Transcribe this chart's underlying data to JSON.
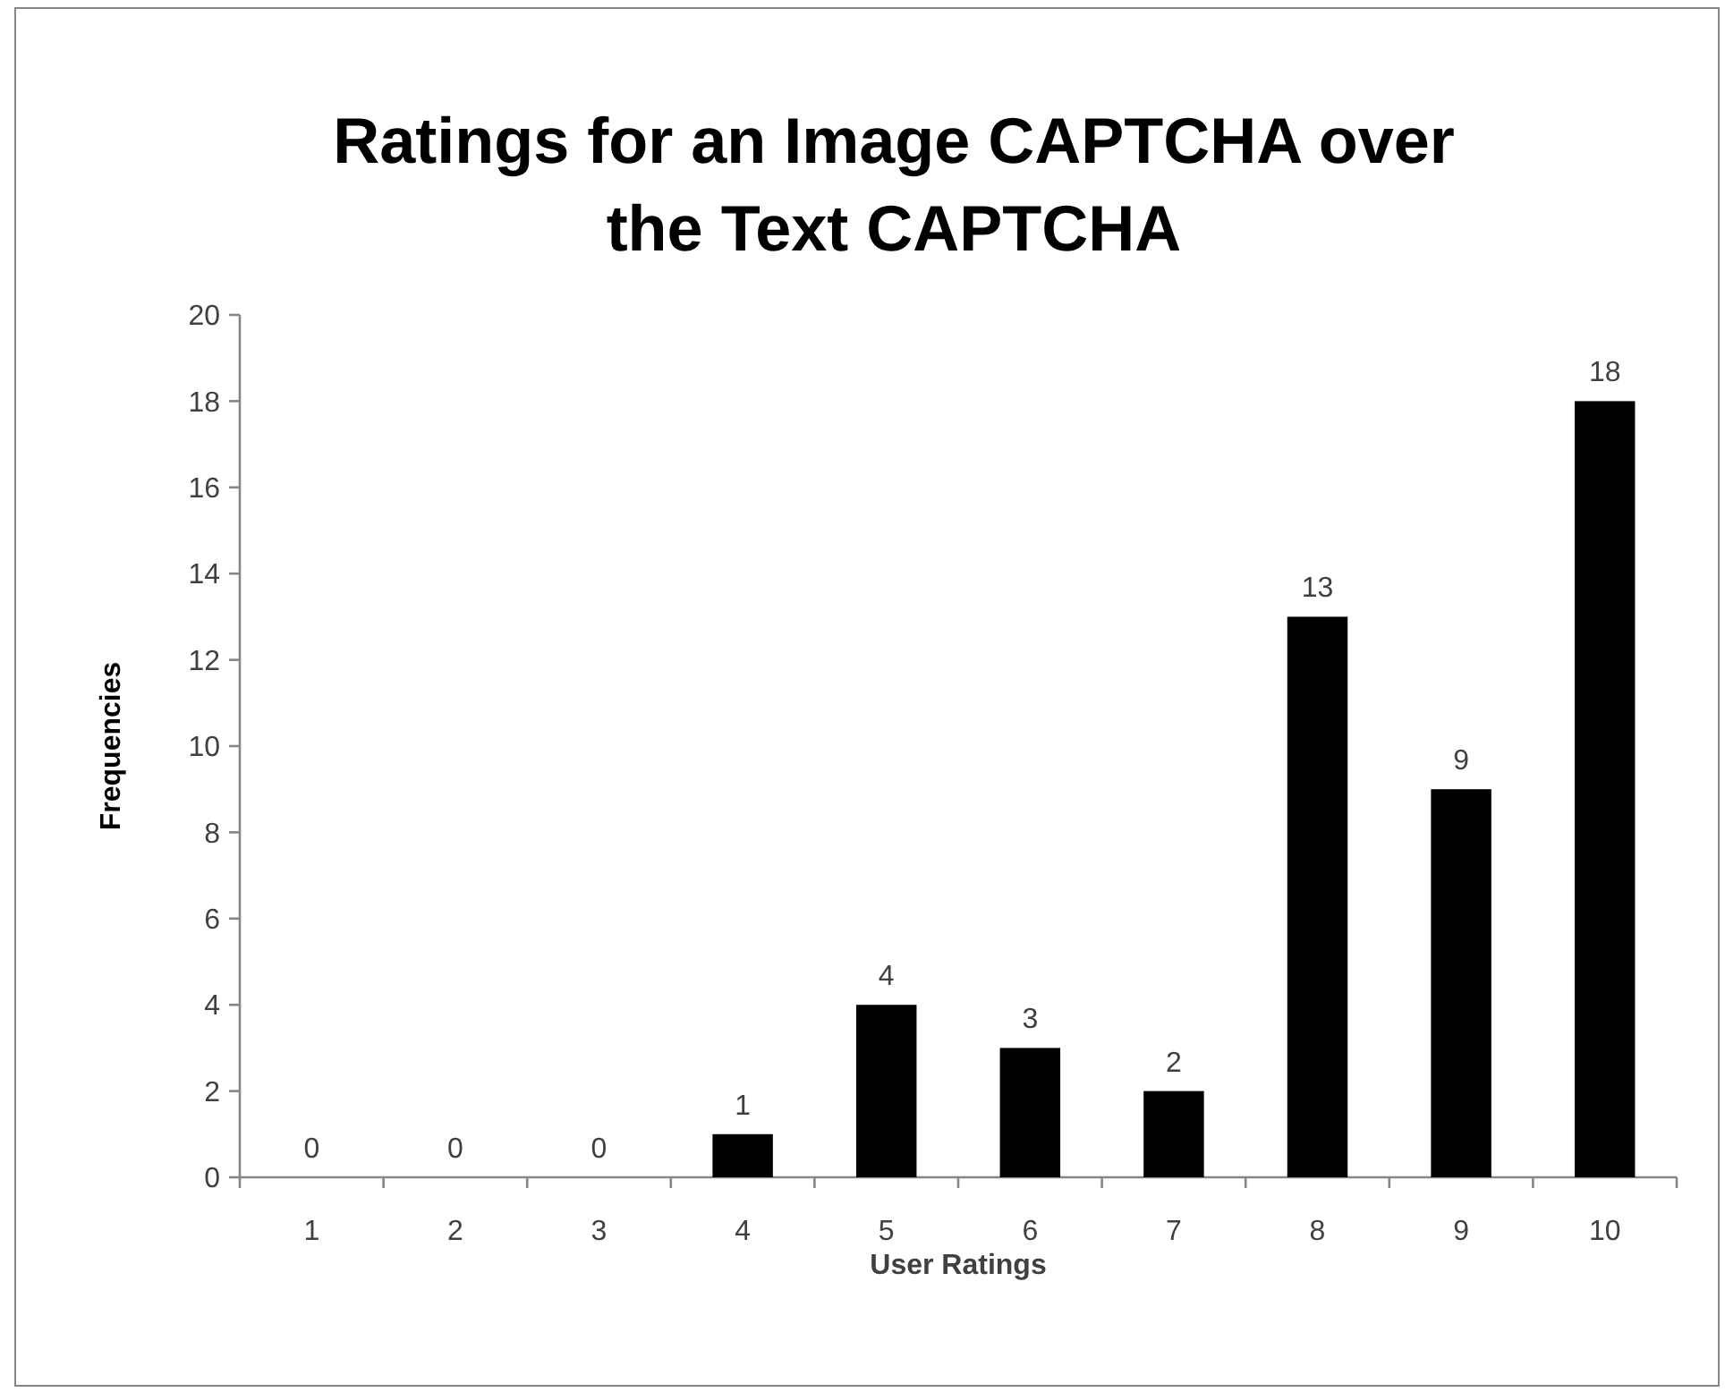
{
  "chart_data": {
    "type": "bar",
    "title": "Ratings for an Image CAPTCHA over the Text CAPTCHA",
    "xlabel": "User Ratings",
    "ylabel": "Frequencies",
    "categories": [
      "1",
      "2",
      "3",
      "4",
      "5",
      "6",
      "7",
      "8",
      "9",
      "10"
    ],
    "values": [
      0,
      0,
      0,
      1,
      4,
      3,
      2,
      13,
      9,
      18
    ],
    "color": "#000000",
    "ylim": [
      0,
      20
    ],
    "yticks": [
      0,
      2,
      4,
      6,
      8,
      10,
      12,
      14,
      16,
      18,
      20
    ],
    "data_labels": true
  }
}
